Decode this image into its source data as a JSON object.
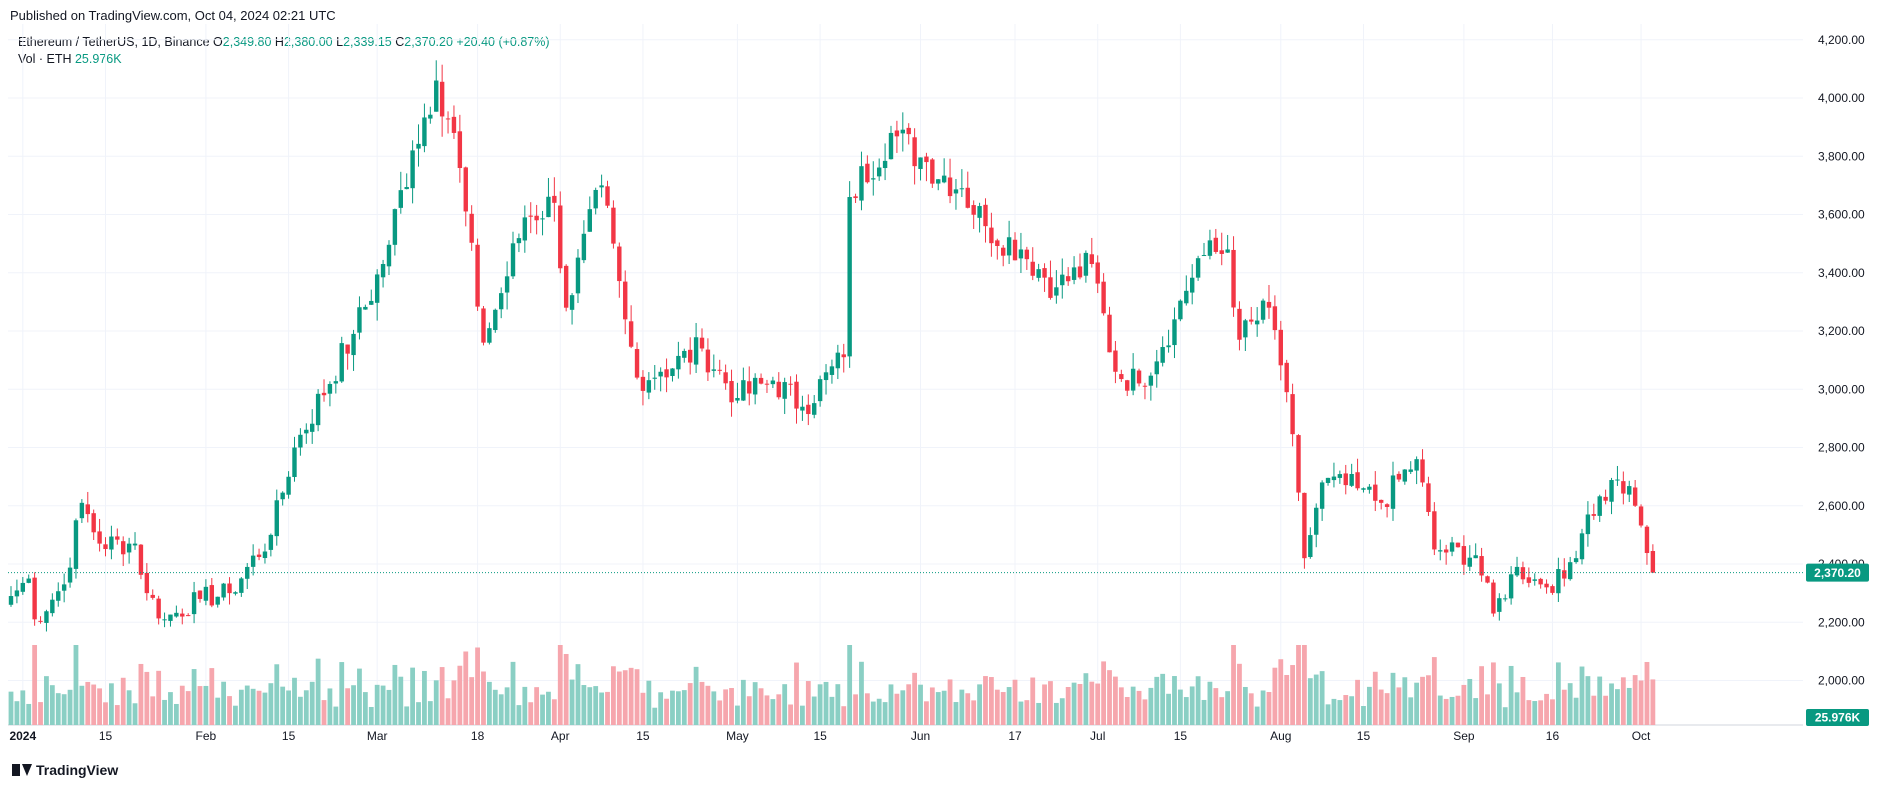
{
  "header": {
    "published": "Published on TradingView.com, Oct 04, 2024 02:21 UTC"
  },
  "legend": {
    "symbol": "Ethereum / TetherUS, 1D, Binance",
    "open_label": "O",
    "open": "2,349.80",
    "high_label": "H",
    "high": "2,380.00",
    "low_label": "L",
    "low": "2,339.15",
    "close_label": "C",
    "close": "2,370.20",
    "change": "+20.40 (+0.87%)",
    "vol_label": "Vol · ETH",
    "vol": "25.976K"
  },
  "branding": {
    "name": "TradingView"
  },
  "colors": {
    "up": "#089981",
    "down": "#F23645",
    "up_vol": "#8ACFC4",
    "down_vol": "#F6A6AD",
    "grid": "#F0F3FA"
  },
  "chart_data": {
    "type": "candlestick",
    "y_ticks": [
      "2,000.00",
      "2,200.00",
      "2,400.00",
      "2,600.00",
      "2,800.00",
      "3,000.00",
      "3,200.00",
      "3,400.00",
      "3,600.00",
      "3,800.00",
      "4,000.00",
      "4,200.00"
    ],
    "ylim": [
      1900,
      4290
    ],
    "x_labels": [
      "2024",
      "15",
      "Feb",
      "15",
      "Mar",
      "18",
      "Apr",
      "15",
      "May",
      "15",
      "Jun",
      "17",
      "Jul",
      "15",
      "Aug",
      "15",
      "Sep",
      "16",
      "Oct"
    ],
    "last_price_label": "2,370.20",
    "last_price": 2370.2,
    "last_volume_label": "25.976K",
    "keypoints_close": [
      [
        "2023-12-30",
        2290
      ],
      [
        "2024-01-02",
        2350
      ],
      [
        "2024-01-03",
        2210
      ],
      [
        "2024-01-08",
        2330
      ],
      [
        "2024-01-11",
        2610
      ],
      [
        "2024-01-14",
        2470
      ],
      [
        "2024-01-20",
        2470
      ],
      [
        "2024-01-22",
        2300
      ],
      [
        "2024-01-25",
        2210
      ],
      [
        "2024-01-31",
        2280
      ],
      [
        "2024-02-05",
        2300
      ],
      [
        "2024-02-12",
        2500
      ],
      [
        "2024-02-16",
        2800
      ],
      [
        "2024-02-26",
        3190
      ],
      [
        "2024-03-02",
        3430
      ],
      [
        "2024-03-07",
        3820
      ],
      [
        "2024-03-11",
        4060
      ],
      [
        "2024-03-14",
        3880
      ],
      [
        "2024-03-19",
        3160
      ],
      [
        "2024-03-22",
        3330
      ],
      [
        "2024-03-26",
        3590
      ],
      [
        "2024-03-31",
        3640
      ],
      [
        "2024-04-02",
        3280
      ],
      [
        "2024-04-08",
        3700
      ],
      [
        "2024-04-12",
        3240
      ],
      [
        "2024-04-14",
        3040
      ],
      [
        "2024-04-18",
        3060
      ],
      [
        "2024-04-25",
        3140
      ],
      [
        "2024-05-01",
        2970
      ],
      [
        "2024-05-07",
        3030
      ],
      [
        "2024-05-12",
        2940
      ],
      [
        "2024-05-19",
        3110
      ],
      [
        "2024-05-20",
        3660
      ],
      [
        "2024-05-27",
        3880
      ],
      [
        "2024-06-02",
        3780
      ],
      [
        "2024-06-08",
        3690
      ],
      [
        "2024-06-12",
        3560
      ],
      [
        "2024-06-18",
        3480
      ],
      [
        "2024-06-24",
        3350
      ],
      [
        "2024-06-30",
        3430
      ],
      [
        "2024-07-04",
        3060
      ],
      [
        "2024-07-08",
        3020
      ],
      [
        "2024-07-14",
        3240
      ],
      [
        "2024-07-18",
        3450
      ],
      [
        "2024-07-23",
        3480
      ],
      [
        "2024-07-25",
        3170
      ],
      [
        "2024-07-30",
        3280
      ],
      [
        "2024-08-02",
        2990
      ],
      [
        "2024-08-05",
        2420
      ],
      [
        "2024-08-08",
        2680
      ],
      [
        "2024-08-14",
        2660
      ],
      [
        "2024-08-18",
        2610
      ],
      [
        "2024-08-24",
        2760
      ],
      [
        "2024-08-27",
        2450
      ],
      [
        "2024-09-03",
        2430
      ],
      [
        "2024-09-06",
        2230
      ],
      [
        "2024-09-10",
        2390
      ],
      [
        "2024-09-14",
        2330
      ],
      [
        "2024-09-18",
        2350
      ],
      [
        "2024-09-22",
        2570
      ],
      [
        "2024-09-27",
        2690
      ],
      [
        "2024-09-30",
        2600
      ],
      [
        "2024-10-03",
        2370
      ]
    ]
  }
}
